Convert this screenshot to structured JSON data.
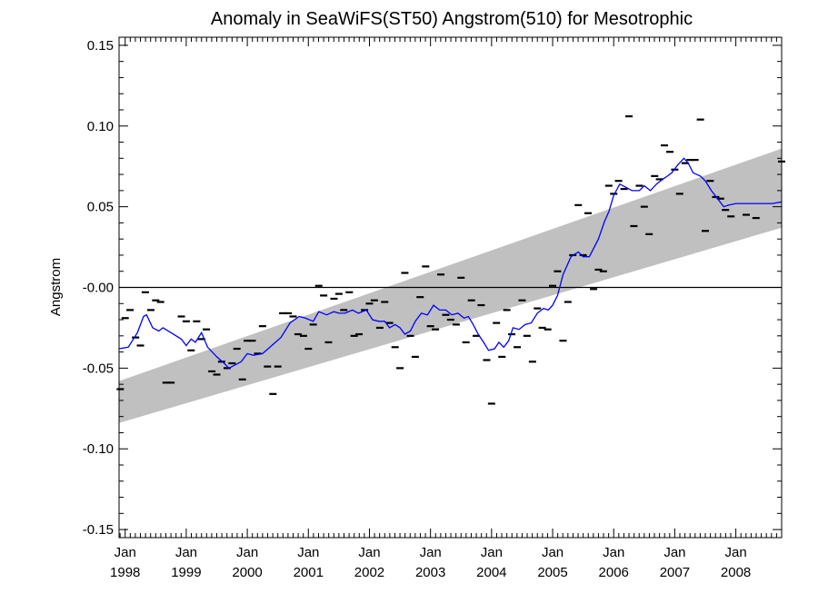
{
  "chart_data": {
    "type": "scatter",
    "title": "Anomaly in SeaWiFS(ST50) Angstrom(510) for Mesotrophic",
    "xlabel": "",
    "ylabel": "Angstrom",
    "xlim": [
      1997.9,
      2008.75
    ],
    "ylim": [
      -0.155,
      0.155
    ],
    "y_ticks": [
      {
        "value": 0.15,
        "label": "0.15"
      },
      {
        "value": 0.1,
        "label": "0.10"
      },
      {
        "value": 0.05,
        "label": "0.05"
      },
      {
        "value": 0.0,
        "label": "-0.00"
      },
      {
        "value": -0.05,
        "label": "-0.05"
      },
      {
        "value": -0.1,
        "label": "-0.10"
      },
      {
        "value": -0.15,
        "label": "-0.15"
      }
    ],
    "x_ticks": [
      {
        "value": 1998,
        "month": "Jan",
        "year": "1998"
      },
      {
        "value": 1999,
        "month": "Jan",
        "year": "1999"
      },
      {
        "value": 2000,
        "month": "Jan",
        "year": "2000"
      },
      {
        "value": 2001,
        "month": "Jan",
        "year": "2001"
      },
      {
        "value": 2002,
        "month": "Jan",
        "year": "2002"
      },
      {
        "value": 2003,
        "month": "Jan",
        "year": "2003"
      },
      {
        "value": 2004,
        "month": "Jan",
        "year": "2004"
      },
      {
        "value": 2005,
        "month": "Jan",
        "year": "2005"
      },
      {
        "value": 2006,
        "month": "Jan",
        "year": "2006"
      },
      {
        "value": 2007,
        "month": "Jan",
        "year": "2007"
      },
      {
        "value": 2008,
        "month": "Jan",
        "year": "2008"
      }
    ],
    "zero_line": 0.0,
    "trend_band": {
      "color": "#c0c0c0",
      "start_x": 1997.9,
      "start_lower": -0.084,
      "start_upper": -0.058,
      "end_x": 2008.75,
      "end_lower": 0.037,
      "end_upper": 0.086
    },
    "series": [
      {
        "type": "scatter",
        "marker": "dash",
        "color": "#000000",
        "points": [
          [
            1997.92,
            -0.063
          ],
          [
            1998.0,
            -0.019
          ],
          [
            1998.08,
            -0.014
          ],
          [
            1998.17,
            -0.031
          ],
          [
            1998.25,
            -0.036
          ],
          [
            1998.33,
            -0.003
          ],
          [
            1998.42,
            -0.014
          ],
          [
            1998.5,
            -0.008
          ],
          [
            1998.58,
            -0.009
          ],
          [
            1998.67,
            -0.059
          ],
          [
            1998.75,
            -0.059
          ],
          [
            1998.92,
            -0.018
          ],
          [
            1999.0,
            -0.021
          ],
          [
            1999.08,
            -0.039
          ],
          [
            1999.17,
            -0.021
          ],
          [
            1999.25,
            -0.032
          ],
          [
            1999.33,
            -0.026
          ],
          [
            1999.42,
            -0.052
          ],
          [
            1999.5,
            -0.054
          ],
          [
            1999.58,
            -0.046
          ],
          [
            1999.67,
            -0.05
          ],
          [
            1999.75,
            -0.047
          ],
          [
            1999.83,
            -0.038
          ],
          [
            1999.92,
            -0.057
          ],
          [
            2000.0,
            -0.033
          ],
          [
            2000.08,
            -0.033
          ],
          [
            2000.17,
            -0.041
          ],
          [
            2000.25,
            -0.024
          ],
          [
            2000.33,
            -0.049
          ],
          [
            2000.42,
            -0.066
          ],
          [
            2000.5,
            -0.049
          ],
          [
            2000.58,
            -0.016
          ],
          [
            2000.67,
            -0.016
          ],
          [
            2000.75,
            -0.018
          ],
          [
            2000.83,
            -0.029
          ],
          [
            2000.92,
            -0.03
          ],
          [
            2001.0,
            -0.038
          ],
          [
            2001.08,
            -0.023
          ],
          [
            2001.17,
            0.001
          ],
          [
            2001.25,
            -0.005
          ],
          [
            2001.33,
            -0.034
          ],
          [
            2001.42,
            -0.007
          ],
          [
            2001.5,
            -0.004
          ],
          [
            2001.58,
            -0.014
          ],
          [
            2001.67,
            -0.003
          ],
          [
            2001.75,
            -0.03
          ],
          [
            2001.83,
            -0.029
          ],
          [
            2001.92,
            -0.014
          ],
          [
            2002.0,
            -0.01
          ],
          [
            2002.08,
            -0.008
          ],
          [
            2002.17,
            -0.025
          ],
          [
            2002.25,
            -0.009
          ],
          [
            2002.33,
            -0.022
          ],
          [
            2002.42,
            -0.037
          ],
          [
            2002.5,
            -0.05
          ],
          [
            2002.58,
            0.009
          ],
          [
            2002.67,
            -0.03
          ],
          [
            2002.75,
            -0.043
          ],
          [
            2002.83,
            -0.006
          ],
          [
            2002.92,
            0.013
          ],
          [
            2003.0,
            -0.024
          ],
          [
            2003.08,
            -0.026
          ],
          [
            2003.17,
            0.008
          ],
          [
            2003.25,
            -0.017
          ],
          [
            2003.33,
            -0.02
          ],
          [
            2003.42,
            -0.023
          ],
          [
            2003.5,
            0.006
          ],
          [
            2003.58,
            -0.034
          ],
          [
            2003.67,
            -0.008
          ],
          [
            2003.75,
            -0.03
          ],
          [
            2003.83,
            -0.011
          ],
          [
            2003.92,
            -0.045
          ],
          [
            2004.0,
            -0.072
          ],
          [
            2004.08,
            -0.022
          ],
          [
            2004.17,
            -0.043
          ],
          [
            2004.25,
            -0.014
          ],
          [
            2004.33,
            -0.029
          ],
          [
            2004.42,
            -0.037
          ],
          [
            2004.5,
            -0.008
          ],
          [
            2004.58,
            -0.03
          ],
          [
            2004.67,
            -0.046
          ],
          [
            2004.75,
            -0.013
          ],
          [
            2004.83,
            -0.025
          ],
          [
            2004.92,
            -0.026
          ],
          [
            2005.0,
            0.001
          ],
          [
            2005.08,
            0.01
          ],
          [
            2005.17,
            -0.033
          ],
          [
            2005.25,
            -0.009
          ],
          [
            2005.33,
            0.02
          ],
          [
            2005.42,
            0.051
          ],
          [
            2005.5,
            0.02
          ],
          [
            2005.58,
            0.046
          ],
          [
            2005.67,
            -0.001
          ],
          [
            2005.75,
            0.011
          ],
          [
            2005.83,
            0.01
          ],
          [
            2005.92,
            0.063
          ],
          [
            2006.0,
            0.058
          ],
          [
            2006.08,
            0.066
          ],
          [
            2006.17,
            0.061
          ],
          [
            2006.25,
            0.106
          ],
          [
            2006.33,
            0.038
          ],
          [
            2006.42,
            0.063
          ],
          [
            2006.5,
            0.05
          ],
          [
            2006.58,
            0.033
          ],
          [
            2006.67,
            0.069
          ],
          [
            2006.75,
            0.067
          ],
          [
            2006.83,
            0.088
          ],
          [
            2006.92,
            0.084
          ],
          [
            2007.0,
            0.073
          ],
          [
            2007.08,
            0.058
          ],
          [
            2007.17,
            0.077
          ],
          [
            2007.25,
            0.079
          ],
          [
            2007.33,
            0.079
          ],
          [
            2007.42,
            0.104
          ],
          [
            2007.5,
            0.035
          ],
          [
            2007.58,
            0.066
          ],
          [
            2007.67,
            0.056
          ],
          [
            2007.75,
            0.055
          ],
          [
            2007.83,
            0.048
          ],
          [
            2007.92,
            0.044
          ],
          [
            2008.17,
            0.045
          ],
          [
            2008.33,
            0.043
          ],
          [
            2008.75,
            0.078
          ]
        ]
      },
      {
        "type": "line",
        "color": "#0000ff",
        "points": [
          [
            1997.9,
            -0.038
          ],
          [
            1998.05,
            -0.037
          ],
          [
            1998.2,
            -0.028
          ],
          [
            1998.3,
            -0.018
          ],
          [
            1998.35,
            -0.017
          ],
          [
            1998.45,
            -0.025
          ],
          [
            1998.55,
            -0.027
          ],
          [
            1998.62,
            -0.025
          ],
          [
            1998.75,
            -0.028
          ],
          [
            1998.92,
            -0.032
          ],
          [
            1999.0,
            -0.036
          ],
          [
            1999.08,
            -0.032
          ],
          [
            1999.15,
            -0.034
          ],
          [
            1999.25,
            -0.028
          ],
          [
            1999.35,
            -0.037
          ],
          [
            1999.5,
            -0.043
          ],
          [
            1999.62,
            -0.047
          ],
          [
            1999.7,
            -0.05
          ],
          [
            1999.8,
            -0.048
          ],
          [
            1999.9,
            -0.046
          ],
          [
            2000.0,
            -0.041
          ],
          [
            2000.1,
            -0.042
          ],
          [
            2000.25,
            -0.041
          ],
          [
            2000.4,
            -0.036
          ],
          [
            2000.55,
            -0.031
          ],
          [
            2000.7,
            -0.022
          ],
          [
            2000.85,
            -0.018
          ],
          [
            2000.95,
            -0.019
          ],
          [
            2001.08,
            -0.021
          ],
          [
            2001.17,
            -0.015
          ],
          [
            2001.3,
            -0.017
          ],
          [
            2001.42,
            -0.015
          ],
          [
            2001.5,
            -0.016
          ],
          [
            2001.6,
            -0.016
          ],
          [
            2001.72,
            -0.014
          ],
          [
            2001.82,
            -0.016
          ],
          [
            2001.95,
            -0.014
          ],
          [
            2002.05,
            -0.02
          ],
          [
            2002.15,
            -0.021
          ],
          [
            2002.25,
            -0.021
          ],
          [
            2002.33,
            -0.025
          ],
          [
            2002.42,
            -0.023
          ],
          [
            2002.5,
            -0.025
          ],
          [
            2002.58,
            -0.029
          ],
          [
            2002.67,
            -0.027
          ],
          [
            2002.75,
            -0.021
          ],
          [
            2002.85,
            -0.016
          ],
          [
            2002.95,
            -0.017
          ],
          [
            2003.05,
            -0.011
          ],
          [
            2003.15,
            -0.014
          ],
          [
            2003.25,
            -0.014
          ],
          [
            2003.35,
            -0.017
          ],
          [
            2003.45,
            -0.016
          ],
          [
            2003.55,
            -0.019
          ],
          [
            2003.62,
            -0.018
          ],
          [
            2003.7,
            -0.023
          ],
          [
            2003.78,
            -0.029
          ],
          [
            2003.87,
            -0.034
          ],
          [
            2003.95,
            -0.039
          ],
          [
            2004.05,
            -0.038
          ],
          [
            2004.12,
            -0.034
          ],
          [
            2004.2,
            -0.037
          ],
          [
            2004.28,
            -0.033
          ],
          [
            2004.35,
            -0.025
          ],
          [
            2004.45,
            -0.026
          ],
          [
            2004.55,
            -0.023
          ],
          [
            2004.65,
            -0.022
          ],
          [
            2004.75,
            -0.016
          ],
          [
            2004.85,
            -0.013
          ],
          [
            2004.93,
            -0.014
          ],
          [
            2005.0,
            -0.011
          ],
          [
            2005.08,
            -0.005
          ],
          [
            2005.17,
            0.008
          ],
          [
            2005.3,
            0.019
          ],
          [
            2005.42,
            0.022
          ],
          [
            2005.5,
            0.019
          ],
          [
            2005.6,
            0.019
          ],
          [
            2005.75,
            0.03
          ],
          [
            2005.85,
            0.041
          ],
          [
            2005.92,
            0.047
          ],
          [
            2006.0,
            0.057
          ],
          [
            2006.1,
            0.064
          ],
          [
            2006.2,
            0.062
          ],
          [
            2006.3,
            0.06
          ],
          [
            2006.42,
            0.06
          ],
          [
            2006.5,
            0.063
          ],
          [
            2006.6,
            0.06
          ],
          [
            2006.7,
            0.064
          ],
          [
            2006.8,
            0.067
          ],
          [
            2006.88,
            0.069
          ],
          [
            2006.95,
            0.071
          ],
          [
            2007.05,
            0.076
          ],
          [
            2007.15,
            0.08
          ],
          [
            2007.22,
            0.077
          ],
          [
            2007.3,
            0.071
          ],
          [
            2007.42,
            0.069
          ],
          [
            2007.5,
            0.066
          ],
          [
            2007.6,
            0.06
          ],
          [
            2007.7,
            0.055
          ],
          [
            2007.8,
            0.05
          ],
          [
            2007.88,
            0.051
          ],
          [
            2008.0,
            0.052
          ],
          [
            2008.2,
            0.052
          ],
          [
            2008.4,
            0.052
          ],
          [
            2008.6,
            0.052
          ],
          [
            2008.75,
            0.053
          ]
        ]
      }
    ],
    "grid": false
  }
}
